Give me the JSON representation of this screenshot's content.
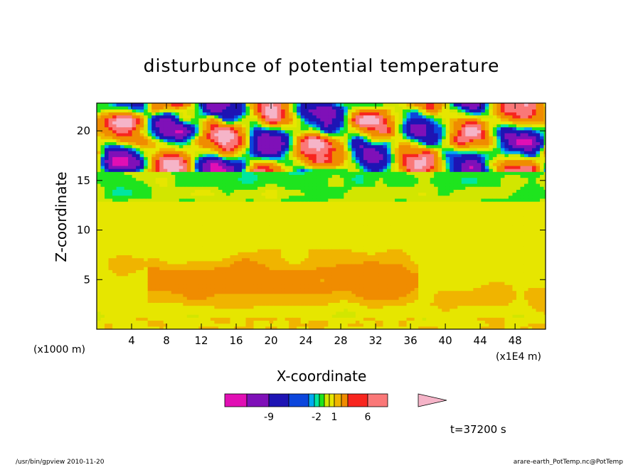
{
  "chart_data": {
    "type": "heatmap",
    "title": "disturbunce of potential temperature",
    "xlabel": "X-coordinate",
    "ylabel": "Z-coordinate",
    "x_unit_left": "(x1000 m)",
    "x_unit_right": "(x1E4 m)",
    "x_ticks": [
      "4",
      "8",
      "12",
      "16",
      "20",
      "24",
      "28",
      "32",
      "36",
      "40",
      "44",
      "48"
    ],
    "x_tick_values": [
      4,
      8,
      12,
      16,
      20,
      24,
      28,
      32,
      36,
      40,
      44,
      48
    ],
    "y_ticks": [
      "5",
      "10",
      "15",
      "20"
    ],
    "y_tick_values": [
      5,
      10,
      15,
      20
    ],
    "xlim": [
      0,
      51.5
    ],
    "ylim": [
      0,
      22.8
    ],
    "time_label": "t=37200 s",
    "colorbar": {
      "labels": [
        "-9",
        "-2",
        "1",
        "6"
      ],
      "colors": [
        "#e10fb4",
        "#7f10b8",
        "#1e14b4",
        "#0c46dc",
        "#00aaf0",
        "#00e6a0",
        "#1ee41e",
        "#d2e600",
        "#e6e600",
        "#f0b400",
        "#f08c00",
        "#f8251e",
        "#fa7878",
        "#f5b4c8"
      ]
    },
    "bands": [
      {
        "z_from": 0,
        "z_to": 1.5,
        "value": "green/yellow patches near surface"
      },
      {
        "z_from": 1.5,
        "z_to": 8,
        "value": "positive (orange, ~2-4)"
      },
      {
        "z_from": 8,
        "z_to": 13,
        "value": "near zero (yellow, ~0-1)"
      },
      {
        "z_from": 13,
        "z_to": 16,
        "value": "small negative (green)"
      },
      {
        "z_from": 16,
        "z_to": 22.8,
        "value": "strong alternating +/- (red/blue)"
      }
    ],
    "footer_left": "/usr/bin/gpview   2010-11-20",
    "footer_right": "arare-earth_PotTemp.nc@PotTemp"
  }
}
